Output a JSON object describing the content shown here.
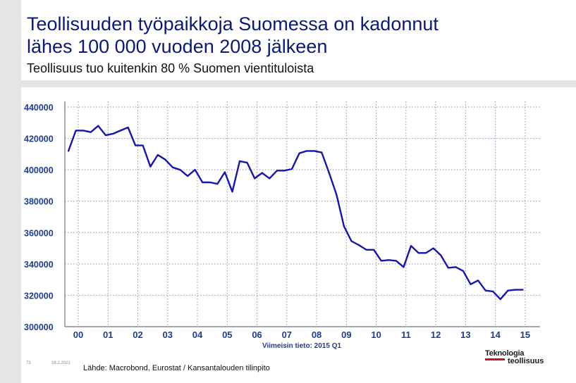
{
  "header": {
    "title_line1": "Teollisuuden työpaikkoja Suomessa on kadonnut",
    "title_line2": "lähes 100 000 vuoden 2008 jälkeen",
    "subtitle": "Teollisuus tuo kuitenkin 80 % Suomen vientituloista"
  },
  "footer": {
    "slide_number": "73",
    "date": "28.2.2021",
    "source": "Lähde: Macrobond, Eurostat / Kansantalouden tilinpito",
    "logo_line1": "Teknologia",
    "logo_line2": "teollisuus"
  },
  "colors": {
    "title": "#0b1a7a",
    "line": "#1515b0",
    "axis_text": "#1f3c96",
    "grid": "#8f93a8"
  },
  "chart_data": {
    "type": "line",
    "title": "",
    "xlabel": "",
    "ylabel": "",
    "note": "Viimeisin tieto: 2015 Q1",
    "x_ticks": [
      "00",
      "01",
      "02",
      "03",
      "04",
      "05",
      "06",
      "07",
      "08",
      "09",
      "10",
      "11",
      "12",
      "13",
      "14",
      "15"
    ],
    "x_tick_values": [
      2000,
      2001,
      2002,
      2003,
      2004,
      2005,
      2006,
      2007,
      2008,
      2009,
      2010,
      2011,
      2012,
      2013,
      2014,
      2015
    ],
    "y_ticks": [
      300000,
      320000,
      340000,
      360000,
      380000,
      400000,
      420000,
      440000
    ],
    "ylim": [
      300000,
      440000
    ],
    "xlim": [
      1999.55,
      2015.5
    ],
    "grid": true,
    "series": [
      {
        "x": [
          1999.67,
          1999.92,
          2000.17,
          2000.42,
          2000.67,
          2000.92,
          2001.17,
          2001.42,
          2001.67,
          2001.92,
          2002.17,
          2002.42,
          2002.67,
          2002.92,
          2003.17,
          2003.42,
          2003.67,
          2003.92,
          2004.17,
          2004.42,
          2004.67,
          2004.92,
          2005.17,
          2005.42,
          2005.67,
          2005.92,
          2006.17,
          2006.42,
          2006.67,
          2006.92,
          2007.17,
          2007.42,
          2007.67,
          2007.92,
          2008.17,
          2008.42,
          2008.67,
          2008.92,
          2009.17,
          2009.42,
          2009.67,
          2009.92,
          2010.17,
          2010.42,
          2010.67,
          2010.92,
          2011.17,
          2011.42,
          2011.67,
          2011.92,
          2012.17,
          2012.42,
          2012.67,
          2012.92,
          2013.17,
          2013.42,
          2013.67,
          2013.92,
          2014.17,
          2014.42,
          2014.67,
          2014.92
        ],
        "values": [
          412000,
          425000,
          425000,
          424000,
          428000,
          422000,
          423000,
          425000,
          427000,
          415500,
          415500,
          402000,
          409500,
          406500,
          401500,
          400000,
          396000,
          400000,
          392000,
          392000,
          391000,
          398500,
          386000,
          405500,
          404500,
          394500,
          398000,
          394500,
          399500,
          399500,
          400500,
          410500,
          412000,
          412000,
          411000,
          398000,
          384000,
          364000,
          354500,
          352000,
          349000,
          349000,
          342000,
          342500,
          342000,
          338000,
          351500,
          347000,
          347000,
          350000,
          345500,
          337500,
          338000,
          335500,
          327000,
          329500,
          323000,
          322500,
          317500,
          323000,
          323500,
          323500
        ]
      }
    ]
  }
}
